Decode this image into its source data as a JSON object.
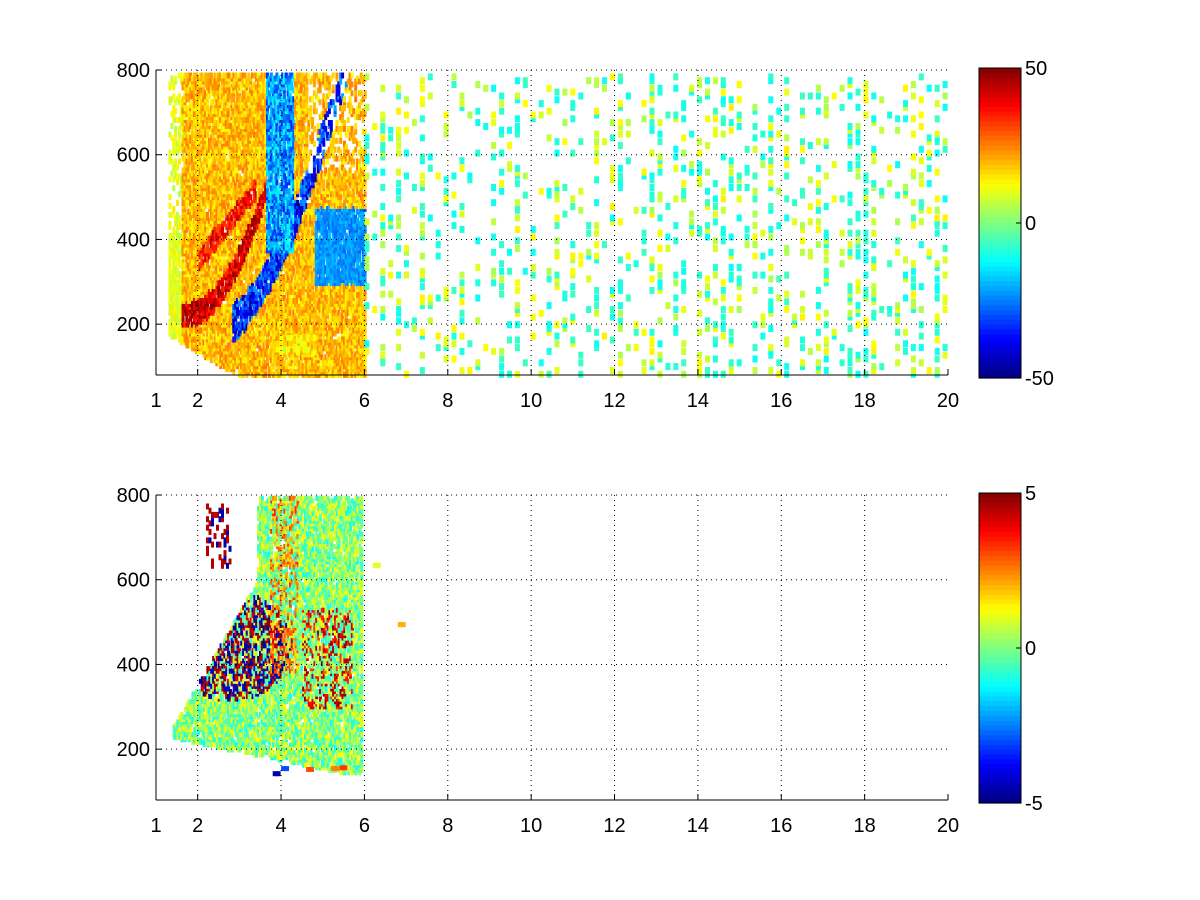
{
  "chart_data": [
    {
      "type": "heatmap",
      "x_ticks": [
        "1",
        "2",
        "4",
        "6",
        "8",
        "10",
        "12",
        "14",
        "16",
        "18",
        "20"
      ],
      "x_tick_values": [
        1,
        2,
        4,
        6,
        8,
        10,
        12,
        14,
        16,
        18,
        20
      ],
      "y_ticks": [
        "200",
        "400",
        "600",
        "800"
      ],
      "y_tick_values": [
        200,
        400,
        600,
        800
      ],
      "xlim": [
        1,
        20
      ],
      "ylim": [
        80,
        800
      ],
      "grid": true,
      "colormap": "jet",
      "colorbar": {
        "ticks": [
          "50",
          "0",
          "-50"
        ],
        "tick_values": [
          50,
          0,
          -50
        ],
        "range": [
          -50,
          50
        ]
      },
      "density_regions": [
        {
          "note": "yellow/orange band",
          "x_range": [
            1.5,
            4.5
          ],
          "y_range": [
            180,
            780
          ],
          "value": 20
        },
        {
          "note": "strong red curved band",
          "x_range": [
            1.7,
            3.5
          ],
          "y_range": [
            230,
            470
          ],
          "value": 45
        },
        {
          "note": "blue/cyan curved band",
          "x_range": [
            3.2,
            5.8
          ],
          "y_range": [
            220,
            480
          ],
          "value": -40
        },
        {
          "note": "cyan vertical streak",
          "x_range": [
            3.6,
            4.2
          ],
          "y_range": [
            400,
            790
          ],
          "value": -25
        },
        {
          "note": "sparse green/yellow noise",
          "x_range": [
            6,
            20
          ],
          "y_range": [
            80,
            800
          ],
          "value": 2
        }
      ]
    },
    {
      "type": "heatmap",
      "x_ticks": [
        "1",
        "2",
        "4",
        "6",
        "8",
        "10",
        "12",
        "14",
        "16",
        "18",
        "20"
      ],
      "x_tick_values": [
        1,
        2,
        4,
        6,
        8,
        10,
        12,
        14,
        16,
        18,
        20
      ],
      "y_ticks": [
        "200",
        "400",
        "600",
        "800"
      ],
      "y_tick_values": [
        200,
        400,
        600,
        800
      ],
      "xlim": [
        1,
        20
      ],
      "ylim": [
        80,
        800
      ],
      "grid": true,
      "colormap": "jet",
      "colorbar": {
        "ticks": [
          "5",
          "0",
          "-5"
        ],
        "tick_values": [
          5,
          0,
          -5
        ],
        "range": [
          -5,
          5
        ]
      },
      "density_regions": [
        {
          "note": "green/yellow mixed region",
          "x_range": [
            1.5,
            5.8
          ],
          "y_range": [
            180,
            790
          ],
          "value": 0.5
        },
        {
          "note": "dark red/blue swirl",
          "x_range": [
            2.2,
            3.6
          ],
          "y_range": [
            360,
            680
          ],
          "value": 4.5
        },
        {
          "note": "red streaks",
          "x_range": [
            4.5,
            5.7
          ],
          "y_range": [
            300,
            540
          ],
          "value": 3.5
        },
        {
          "note": "small blobs near bottom",
          "x_range": [
            3.8,
            5.7
          ],
          "y_range": [
            140,
            170
          ],
          "value": 2
        }
      ]
    }
  ]
}
